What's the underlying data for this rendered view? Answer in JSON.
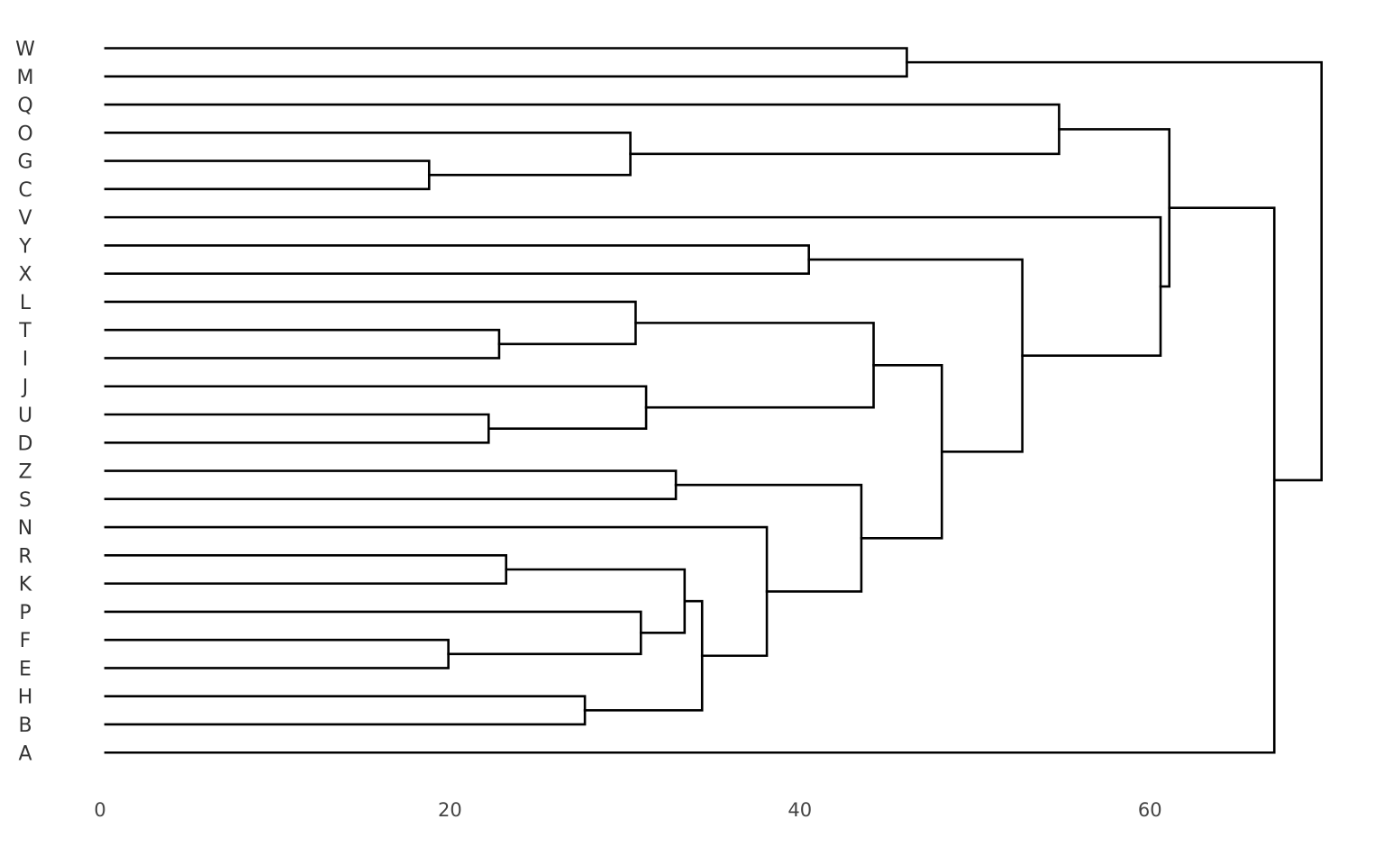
{
  "chart_data": {
    "type": "dendrogram",
    "orientation": "horizontal",
    "title": "",
    "xlabel": "",
    "ylabel": "",
    "xlim": [
      0,
      70
    ],
    "x_ticks": [
      0,
      20,
      40,
      60
    ],
    "grid": false,
    "leaves": [
      "W",
      "M",
      "Q",
      "O",
      "G",
      "C",
      "V",
      "Y",
      "X",
      "L",
      "T",
      "I",
      "J",
      "U",
      "D",
      "Z",
      "S",
      "N",
      "R",
      "K",
      "P",
      "F",
      "E",
      "H",
      "B",
      "A"
    ],
    "merges": [
      {
        "id": "n1",
        "children": [
          "G",
          "C"
        ],
        "height": 18.5
      },
      {
        "id": "n2",
        "children": [
          "O",
          "n1"
        ],
        "height": 30.0
      },
      {
        "id": "n3",
        "children": [
          "Q",
          "n2"
        ],
        "height": 54.5
      },
      {
        "id": "n4",
        "children": [
          "T",
          "I"
        ],
        "height": 22.5
      },
      {
        "id": "n5",
        "children": [
          "L",
          "n4"
        ],
        "height": 30.3
      },
      {
        "id": "n6",
        "children": [
          "U",
          "D"
        ],
        "height": 21.9
      },
      {
        "id": "n7",
        "children": [
          "J",
          "n6"
        ],
        "height": 30.9
      },
      {
        "id": "n8",
        "children": [
          "n5",
          "n7"
        ],
        "height": 43.9
      },
      {
        "id": "n9",
        "children": [
          "Z",
          "S"
        ],
        "height": 32.6
      },
      {
        "id": "n10",
        "children": [
          "R",
          "K"
        ],
        "height": 22.9
      },
      {
        "id": "n11",
        "children": [
          "F",
          "E"
        ],
        "height": 19.6
      },
      {
        "id": "n12",
        "children": [
          "P",
          "n11"
        ],
        "height": 30.6
      },
      {
        "id": "n13",
        "children": [
          "n10",
          "n12"
        ],
        "height": 33.1
      },
      {
        "id": "n14",
        "children": [
          "H",
          "B"
        ],
        "height": 27.4
      },
      {
        "id": "n15",
        "children": [
          "n13",
          "n14"
        ],
        "height": 34.1
      },
      {
        "id": "n16",
        "children": [
          "N",
          "n15"
        ],
        "height": 37.8
      },
      {
        "id": "n17",
        "children": [
          "n9",
          "n16"
        ],
        "height": 43.2
      },
      {
        "id": "n18",
        "children": [
          "n8",
          "n17"
        ],
        "height": 47.8
      },
      {
        "id": "n19",
        "children": [
          "Y",
          "X"
        ],
        "height": 40.2
      },
      {
        "id": "n20",
        "children": [
          "n19",
          "n18"
        ],
        "height": 52.4
      },
      {
        "id": "n21",
        "children": [
          "V",
          "n20"
        ],
        "height": 60.3
      },
      {
        "id": "n22",
        "children": [
          "n3",
          "n21"
        ],
        "height": 60.8
      },
      {
        "id": "n23",
        "children": [
          "n22",
          "A"
        ],
        "height": 66.8
      },
      {
        "id": "n24",
        "children": [
          "W",
          "M"
        ],
        "height": 45.8
      },
      {
        "id": "n25",
        "children": [
          "n24",
          "n23"
        ],
        "height": 69.5
      }
    ]
  }
}
